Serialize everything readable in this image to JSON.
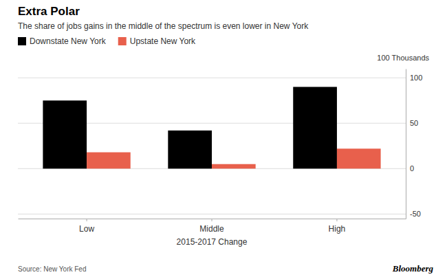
{
  "chart_data": {
    "type": "bar",
    "title": "Extra Polar",
    "subtitle": "The share of jobs gains in the middle of the spectrum is even lower in New York",
    "categories": [
      "Low",
      "Middle",
      "High"
    ],
    "series": [
      {
        "name": "Downstate New York",
        "color": "#000000",
        "values": [
          75,
          42,
          90
        ]
      },
      {
        "name": "Upstate New York",
        "color": "#E8604C",
        "values": [
          18,
          5,
          22
        ]
      }
    ],
    "xlabel": "2015-2017 Change",
    "ylabel": "100 Thousands",
    "ylim": [
      -55,
      110
    ],
    "yticks": [
      -50,
      0,
      50,
      100
    ],
    "grid": true,
    "legend": "top",
    "source": "Source: New York Fed",
    "annotations": [
      "Bloomberg"
    ]
  }
}
